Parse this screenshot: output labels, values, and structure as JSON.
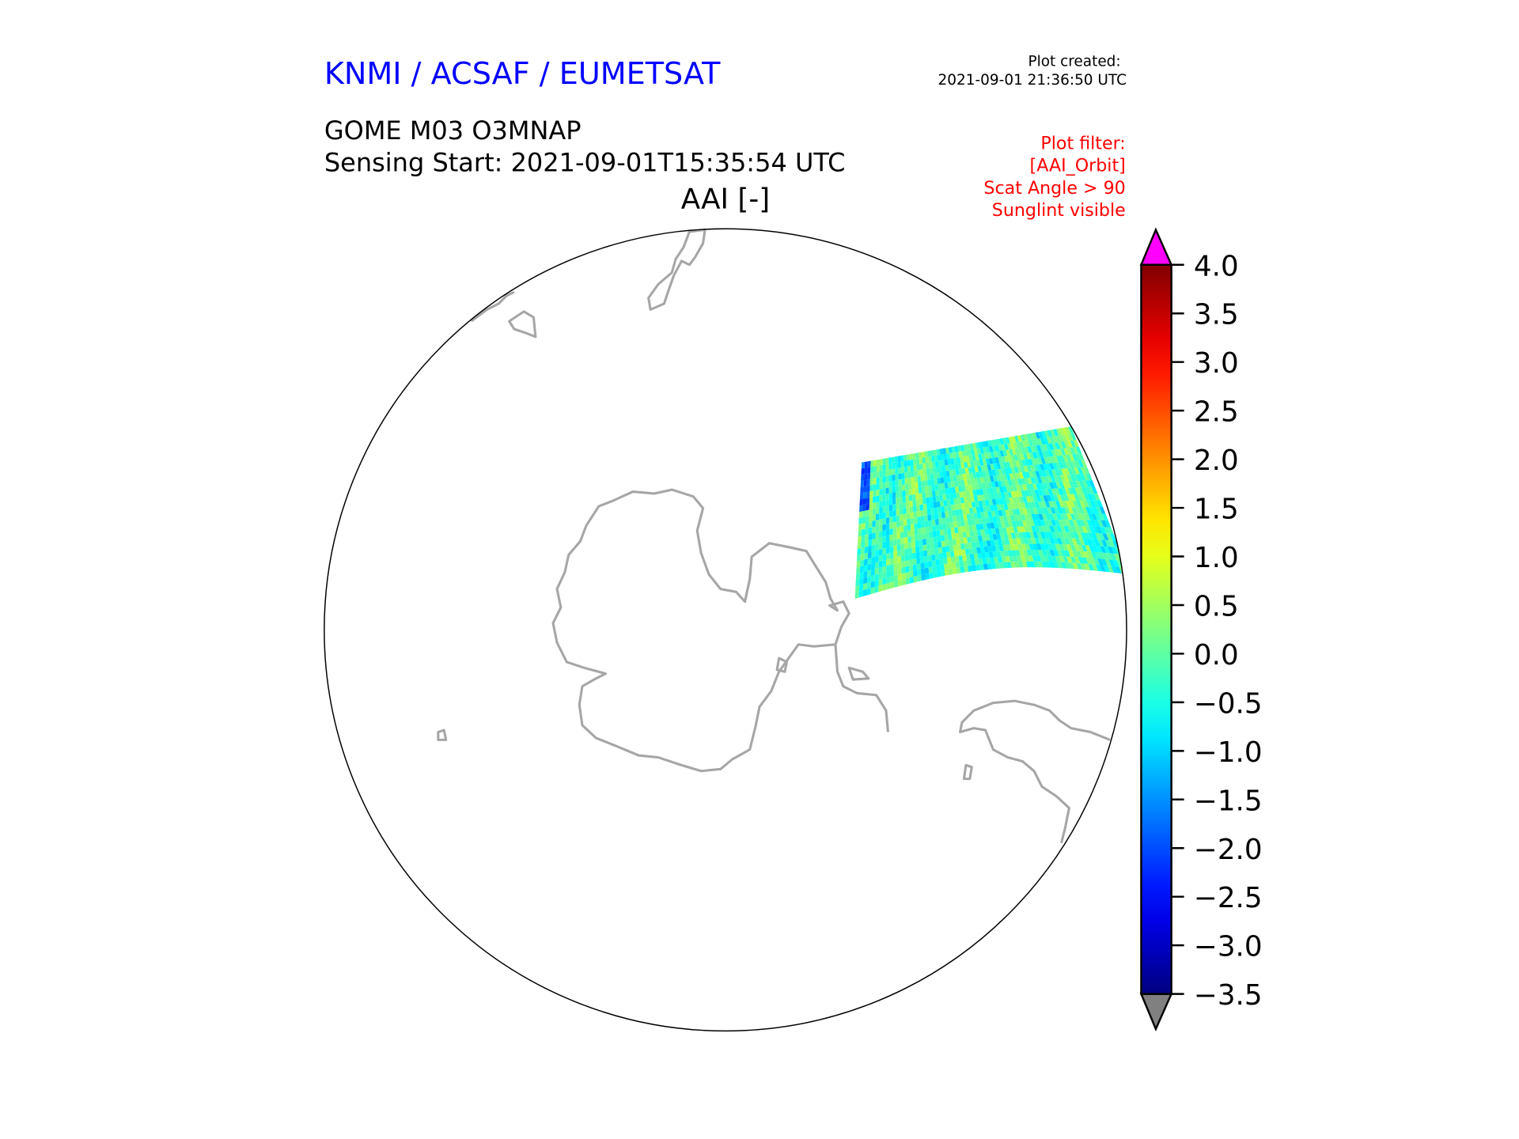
{
  "header": {
    "organization": "KNMI / ACSAF / EUMETSAT",
    "plot_created_label": "Plot created:",
    "plot_created_time": "2021-09-01 21:36:50 UTC",
    "product": "GOME M03 O3MNAP",
    "sensing_start": "Sensing Start: 2021-09-01T15:35:54 UTC",
    "filter_lines": [
      "Plot filter:",
      "[AAI_Orbit]",
      "Scat Angle > 90",
      "Sunglint visible"
    ]
  },
  "colors": {
    "organization": "#0000ff",
    "filter": "#ff0000",
    "coastline": "#a6a6a6",
    "over": "#ff00ff",
    "under": "#808080"
  },
  "chart_data": {
    "type": "heatmap",
    "title": "AAI [-]",
    "projection": "south polar orthographic",
    "colormap": "jet",
    "range": [
      -3.5,
      4.0
    ],
    "extend": "both",
    "colorbar_ticks": [
      4.0,
      3.5,
      3.0,
      2.5,
      2.0,
      1.5,
      1.0,
      0.5,
      0.0,
      -0.5,
      -1.0,
      -1.5,
      -2.0,
      -2.5,
      -3.0,
      -3.5
    ],
    "colorbar_tick_labels": [
      "4.0",
      "3.5",
      "3.0",
      "2.5",
      "2.0",
      "1.5",
      "1.0",
      "0.5",
      "0.0",
      "−0.5",
      "−1.0",
      "−1.5",
      "−2.0",
      "−2.5",
      "−3.0",
      "−3.5"
    ],
    "swath_typical_range": [
      -1.0,
      1.0
    ]
  }
}
